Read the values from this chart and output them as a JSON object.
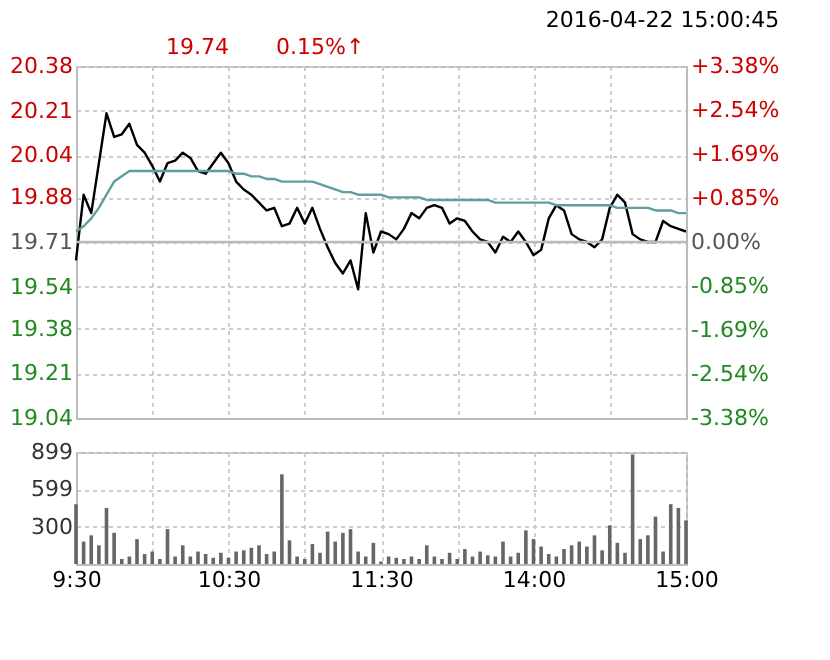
{
  "chart_data": [
    {
      "type": "line",
      "title": "2016-04-22 15:00:45",
      "annotations": [
        "19.74",
        "0.15%↑"
      ],
      "categories": [
        null,
        null,
        null,
        null,
        null,
        null,
        null,
        null,
        null,
        null,
        null,
        null,
        null,
        null,
        null,
        null,
        null,
        null,
        null,
        null,
        null,
        null,
        null,
        null,
        null,
        null,
        null,
        null,
        null,
        null,
        null,
        null,
        null,
        null,
        null,
        null,
        null,
        null,
        null,
        null,
        null,
        null,
        null,
        null,
        null,
        null,
        null,
        null,
        null,
        null,
        null,
        null,
        null,
        null,
        null,
        null,
        null,
        null,
        null,
        null,
        null,
        null,
        null,
        null,
        null,
        null,
        null,
        null,
        null,
        null,
        null,
        null,
        null,
        null,
        null,
        null,
        null,
        null,
        null,
        null,
        null
      ],
      "ylim": [
        19.04,
        20.38
      ],
      "yticks": [
        19.04,
        19.21,
        19.38,
        19.54,
        19.71,
        19.88,
        20.04,
        20.21,
        20.38
      ],
      "y2lim": [
        -3.38,
        3.38
      ],
      "y2ticks": [
        {
          "value": -3.38,
          "label": "-3.38%"
        },
        {
          "value": -2.54,
          "label": "-2.54%"
        },
        {
          "value": -1.69,
          "label": "-1.69%"
        },
        {
          "value": -0.85,
          "label": "-0.85%"
        },
        {
          "value": 0,
          "label": "0.00%"
        },
        {
          "value": 0.85,
          "label": "+0.85%"
        },
        {
          "value": 1.69,
          "label": "+1.69%"
        },
        {
          "value": 2.54,
          "label": "+2.54%"
        },
        {
          "value": 3.38,
          "label": "+3.38%"
        }
      ],
      "grid": true,
      "tick_labels": "y",
      "marker": "none",
      "line_style": "solid",
      "ref_lines": [
        {
          "axis": "y2",
          "value": 0,
          "color": "#bbbbbb"
        }
      ],
      "series": [
        {
          "color": "#000000",
          "values": [
            19.64,
            19.89,
            19.82,
            20.01,
            20.2,
            20.11,
            20.12,
            20.16,
            20.08,
            20.05,
            20.0,
            19.94,
            20.01,
            20.02,
            20.05,
            20.03,
            19.98,
            19.97,
            20.01,
            20.05,
            20.01,
            19.94,
            19.91,
            19.89,
            19.86,
            19.83,
            19.84,
            19.77,
            19.78,
            19.84,
            19.78,
            19.84,
            19.76,
            19.69,
            19.63,
            19.59,
            19.64,
            19.53,
            19.82,
            19.67,
            19.75,
            19.74,
            19.72,
            19.76,
            19.82,
            19.8,
            19.84,
            19.85,
            19.84,
            19.78,
            19.8,
            19.79,
            19.75,
            19.72,
            19.71,
            19.67,
            19.73,
            19.71,
            19.75,
            19.71,
            19.66,
            19.68,
            19.8,
            19.85,
            19.83,
            19.74,
            19.72,
            19.71,
            19.69,
            19.72,
            19.84,
            19.89,
            19.86,
            19.74,
            19.72,
            19.71,
            19.71,
            19.79,
            19.77,
            19.76,
            19.75
          ]
        },
        {
          "color": "#5f9ea0",
          "values": [
            19.75,
            19.77,
            19.8,
            19.84,
            19.89,
            19.94,
            19.96,
            19.98,
            19.98,
            19.98,
            19.98,
            19.98,
            19.98,
            19.98,
            19.98,
            19.98,
            19.98,
            19.98,
            19.98,
            19.98,
            19.98,
            19.97,
            19.97,
            19.96,
            19.96,
            19.95,
            19.95,
            19.94,
            19.94,
            19.94,
            19.94,
            19.94,
            19.93,
            19.92,
            19.91,
            19.9,
            19.9,
            19.89,
            19.89,
            19.89,
            19.89,
            19.88,
            19.88,
            19.88,
            19.88,
            19.88,
            19.87,
            19.87,
            19.87,
            19.87,
            19.87,
            19.87,
            19.87,
            19.87,
            19.87,
            19.86,
            19.86,
            19.86,
            19.86,
            19.86,
            19.86,
            19.86,
            19.86,
            19.85,
            19.85,
            19.85,
            19.85,
            19.85,
            19.85,
            19.85,
            19.85,
            19.84,
            19.84,
            19.84,
            19.84,
            19.84,
            19.83,
            19.83,
            19.83,
            19.82,
            19.82
          ]
        }
      ]
    },
    {
      "type": "bar",
      "categories": [
        "9:30",
        null,
        null,
        null,
        null,
        null,
        null,
        null,
        null,
        null,
        null,
        null,
        null,
        null,
        null,
        null,
        null,
        null,
        null,
        null,
        "10:30",
        null,
        null,
        null,
        null,
        null,
        null,
        null,
        null,
        null,
        null,
        null,
        null,
        null,
        null,
        null,
        null,
        null,
        null,
        null,
        "11:30",
        null,
        null,
        null,
        null,
        null,
        null,
        null,
        null,
        null,
        null,
        null,
        null,
        null,
        null,
        null,
        null,
        null,
        null,
        null,
        "14:00",
        null,
        null,
        null,
        null,
        null,
        null,
        null,
        null,
        null,
        null,
        null,
        null,
        null,
        null,
        null,
        null,
        null,
        null,
        null,
        "15:00"
      ],
      "ylim": [
        0,
        899
      ],
      "yticks": [
        300,
        599,
        899
      ],
      "grid": true,
      "series": [
        {
          "color": "#666666",
          "values": [
            480,
            180,
            230,
            150,
            450,
            250,
            40,
            60,
            200,
            80,
            100,
            40,
            280,
            60,
            150,
            60,
            100,
            80,
            50,
            90,
            50,
            100,
            110,
            130,
            150,
            80,
            100,
            720,
            190,
            60,
            40,
            160,
            90,
            260,
            180,
            250,
            280,
            100,
            60,
            170,
            20,
            60,
            50,
            40,
            60,
            40,
            150,
            60,
            40,
            90,
            40,
            120,
            60,
            100,
            70,
            60,
            180,
            60,
            90,
            270,
            200,
            140,
            80,
            60,
            120,
            150,
            180,
            140,
            230,
            110,
            310,
            170,
            90,
            880,
            200,
            230,
            380,
            100,
            480,
            450,
            350
          ]
        }
      ]
    }
  ]
}
